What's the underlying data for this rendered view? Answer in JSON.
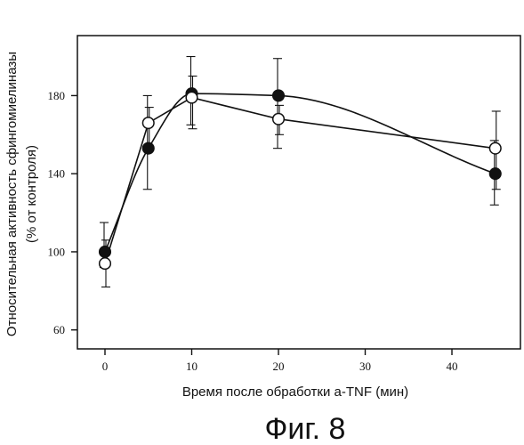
{
  "chart_data": {
    "type": "line",
    "title": "",
    "caption": "Фиг. 8",
    "xlabel": "Время после обработки a-TNF (мин)",
    "ylabel_lines": [
      "Относительная активность сфингомиелиназы",
      "(% от контроля)"
    ],
    "xlim": [
      -3,
      48
    ],
    "ylim": [
      55,
      200
    ],
    "xticks": [
      0,
      10,
      20,
      30,
      40
    ],
    "yticks": [
      60,
      100,
      140,
      180
    ],
    "grid": false,
    "legend": "none",
    "series": [
      {
        "marker": "filled-circle",
        "x": [
          0,
          5,
          10,
          20,
          45
        ],
        "y": [
          100,
          153,
          181,
          180,
          140
        ],
        "err_low": [
          92,
          132,
          165,
          153,
          124
        ],
        "err_high": [
          115,
          180,
          200,
          199,
          157
        ],
        "color": "#111111"
      },
      {
        "marker": "open-circle",
        "x": [
          0,
          5,
          10,
          20,
          45
        ],
        "y": [
          94,
          166,
          179,
          168,
          153
        ],
        "err_low": [
          82,
          152,
          163,
          160,
          132
        ],
        "err_high": [
          106,
          174,
          190,
          175,
          172
        ],
        "color": "#111111"
      }
    ]
  }
}
